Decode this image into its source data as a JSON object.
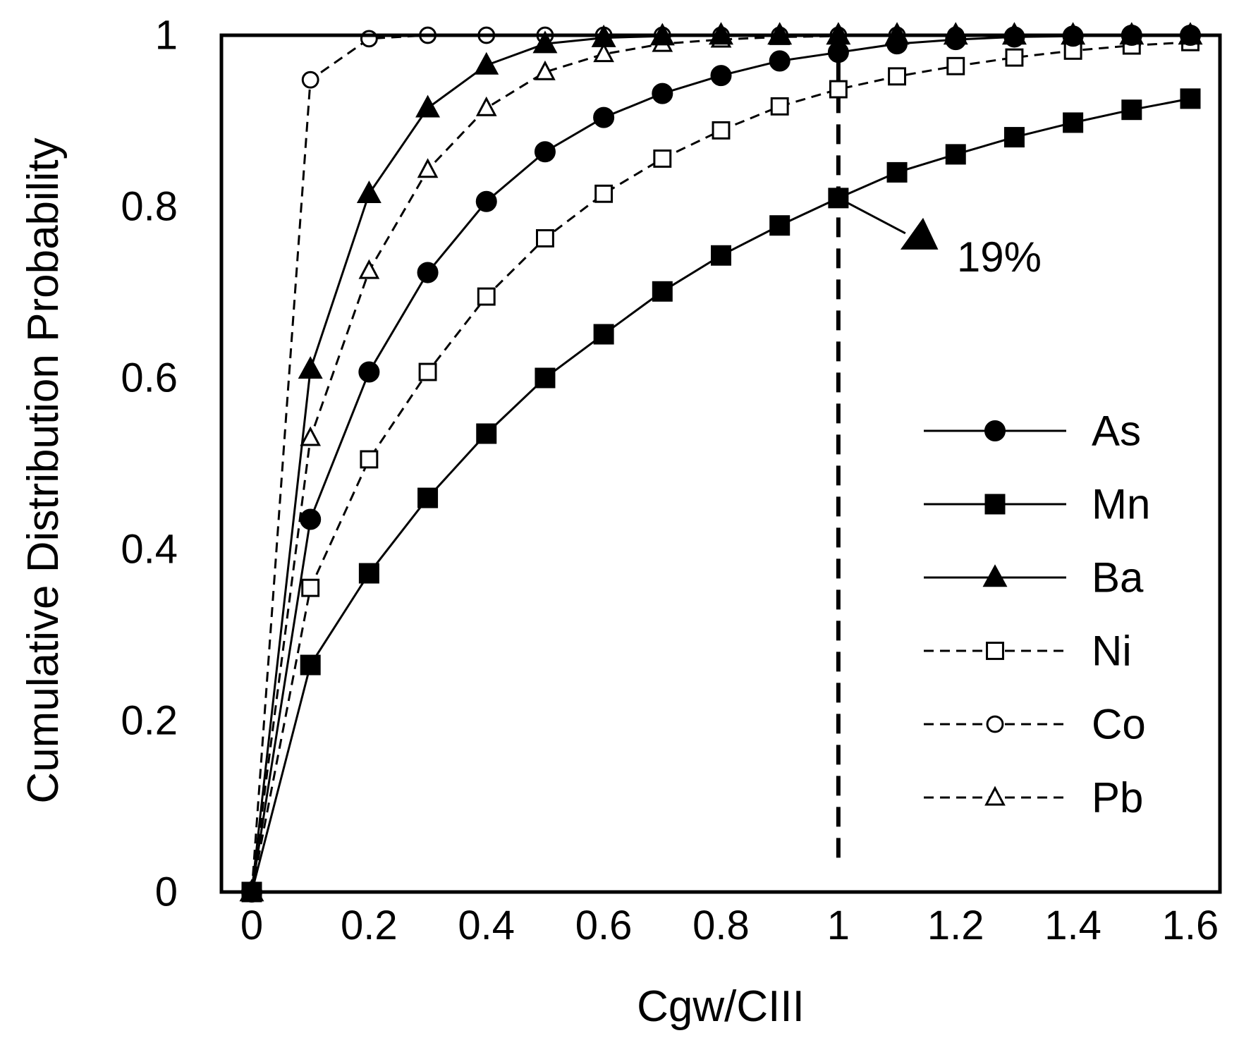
{
  "chart_data": {
    "type": "line",
    "title": "",
    "xlabel": "Cgw/CIII",
    "ylabel": "Cumulative Distribution Probability",
    "xlim": [
      -0.05,
      1.65
    ],
    "ylim": [
      0,
      1
    ],
    "xticks": [
      0,
      0.2,
      0.4,
      0.6,
      0.8,
      1,
      1.2,
      1.4,
      1.6
    ],
    "xtick_labels": [
      "0",
      "0.2",
      "0.4",
      "0.6",
      "0.8",
      "1",
      "1.2",
      "1.4",
      "1.6"
    ],
    "yticks": [
      0,
      0.2,
      0.4,
      0.6,
      0.8,
      1
    ],
    "ytick_labels": [
      "0",
      "0.2",
      "0.4",
      "0.6",
      "0.8",
      "1"
    ],
    "grid": false,
    "legend_position": "right",
    "series": [
      {
        "name": "As",
        "line": "solid",
        "marker": "circle",
        "filled": true,
        "x": [
          0,
          0.1,
          0.2,
          0.3,
          0.4,
          0.5,
          0.6,
          0.7,
          0.8,
          0.9,
          1.0,
          1.1,
          1.2,
          1.3,
          1.4,
          1.5,
          1.6
        ],
        "y": [
          0,
          0.435,
          0.607,
          0.723,
          0.806,
          0.864,
          0.904,
          0.932,
          0.953,
          0.97,
          0.98,
          0.99,
          0.995,
          0.998,
          0.999,
          1.0,
          1.0
        ]
      },
      {
        "name": "Mn",
        "line": "solid",
        "marker": "square",
        "filled": true,
        "x": [
          0,
          0.1,
          0.2,
          0.3,
          0.4,
          0.5,
          0.6,
          0.7,
          0.8,
          0.9,
          1.0,
          1.1,
          1.2,
          1.3,
          1.4,
          1.5,
          1.6
        ],
        "y": [
          0,
          0.265,
          0.372,
          0.46,
          0.535,
          0.6,
          0.651,
          0.701,
          0.743,
          0.778,
          0.81,
          0.84,
          0.861,
          0.881,
          0.898,
          0.913,
          0.926
        ]
      },
      {
        "name": "Ba",
        "line": "solid",
        "marker": "triangle",
        "filled": true,
        "x": [
          0,
          0.1,
          0.2,
          0.3,
          0.4,
          0.5,
          0.6,
          0.7,
          0.8,
          0.9,
          1.0,
          1.1,
          1.2,
          1.3,
          1.4,
          1.5,
          1.6
        ],
        "y": [
          0,
          0.61,
          0.815,
          0.915,
          0.965,
          0.99,
          0.997,
          0.999,
          1.0,
          1.0,
          1.0,
          1.0,
          1.0,
          1.0,
          1.0,
          1.0,
          1.0
        ]
      },
      {
        "name": "Ni",
        "line": "dashed",
        "marker": "square",
        "filled": false,
        "x": [
          0,
          0.1,
          0.2,
          0.3,
          0.4,
          0.5,
          0.6,
          0.7,
          0.8,
          0.9,
          1.0,
          1.1,
          1.2,
          1.3,
          1.4,
          1.5,
          1.6
        ],
        "y": [
          0,
          0.355,
          0.505,
          0.607,
          0.695,
          0.763,
          0.815,
          0.856,
          0.889,
          0.917,
          0.937,
          0.952,
          0.964,
          0.974,
          0.982,
          0.988,
          0.992
        ]
      },
      {
        "name": "Co",
        "line": "dashed",
        "marker": "circle",
        "filled": false,
        "x": [
          0,
          0.1,
          0.2,
          0.3,
          0.4,
          0.5,
          0.6,
          0.7,
          0.8,
          0.9,
          1.0,
          1.1,
          1.2,
          1.3,
          1.4,
          1.5,
          1.6
        ],
        "y": [
          0,
          0.948,
          0.996,
          1.0,
          1.0,
          1.0,
          1.0,
          1.0,
          1.0,
          1.0,
          1.0,
          1.0,
          1.0,
          1.0,
          1.0,
          1.0,
          1.0
        ]
      },
      {
        "name": "Pb",
        "line": "dashed",
        "marker": "triangle",
        "filled": false,
        "x": [
          0,
          0.1,
          0.2,
          0.3,
          0.4,
          0.5,
          0.6,
          0.7,
          0.8,
          0.9,
          1.0,
          1.1,
          1.2,
          1.3,
          1.4,
          1.5,
          1.6
        ],
        "y": [
          0,
          0.53,
          0.725,
          0.843,
          0.915,
          0.957,
          0.978,
          0.99,
          0.995,
          0.998,
          0.999,
          1.0,
          1.0,
          1.0,
          1.0,
          1.0,
          1.0
        ]
      }
    ],
    "reference_line": {
      "x": 1,
      "y_from": 0.04,
      "y_to": 1,
      "style": "dashed"
    },
    "annotations": [
      {
        "text": "19%",
        "points_to": {
          "x": 1,
          "y": 0.81
        },
        "marker": "triangle"
      }
    ]
  }
}
